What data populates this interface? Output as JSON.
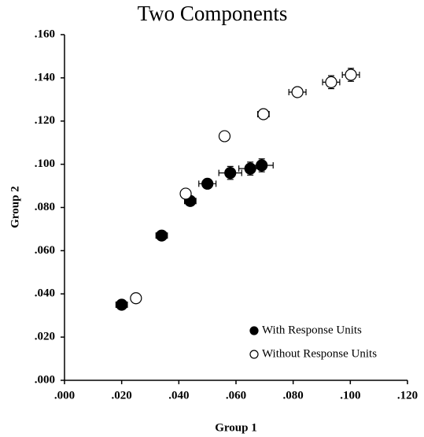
{
  "chart_data": {
    "type": "scatter",
    "title": "Two Components",
    "x_label": "Group 1",
    "y_label": "Group 2",
    "xlim": [
      0,
      0.12
    ],
    "ylim": [
      0,
      0.16
    ],
    "xticks": [
      {
        "value": 0,
        "label": ".000"
      },
      {
        "value": 0.02,
        "label": ".020"
      },
      {
        "value": 0.04,
        "label": ".040"
      },
      {
        "value": 0.06,
        "label": ".060"
      },
      {
        "value": 0.08,
        "label": ".080"
      },
      {
        "value": 0.1,
        "label": ".100"
      },
      {
        "value": 0.12,
        "label": ".120"
      }
    ],
    "yticks": [
      {
        "value": 0,
        "label": ".000"
      },
      {
        "value": 0.02,
        "label": ".020"
      },
      {
        "value": 0.04,
        "label": ".040"
      },
      {
        "value": 0.06,
        "label": ".060"
      },
      {
        "value": 0.08,
        "label": ".080"
      },
      {
        "value": 0.1,
        "label": ".100"
      },
      {
        "value": 0.12,
        "label": ".120"
      },
      {
        "value": 0.14,
        "label": ".140"
      },
      {
        "value": 0.16,
        "label": ".160"
      }
    ],
    "legend": "lower right",
    "series": [
      {
        "name": "With Response Units",
        "color": "#000000",
        "filled": true,
        "x": [
          0.02,
          0.034,
          0.044,
          0.05,
          0.058,
          0.065,
          0.069
        ],
        "values": [
          0.035,
          0.067,
          0.083,
          0.091,
          0.096,
          0.098,
          0.0995
        ],
        "xerr": [
          0.002,
          0.002,
          0.002,
          0.003,
          0.004,
          0.004,
          0.004
        ],
        "yerr": [
          0.001,
          0.001,
          0.002,
          0.002,
          0.003,
          0.003,
          0.003
        ]
      },
      {
        "name": "Without Response Units",
        "color": "#000000",
        "filled": false,
        "x": [
          0.025,
          0.0424,
          0.056,
          0.0696,
          0.0815,
          0.0933,
          0.1002
        ],
        "values": [
          0.038,
          0.0864,
          0.113,
          0.1232,
          0.1334,
          0.138,
          0.1414
        ],
        "xerr": [
          0.001,
          0.001,
          0.001,
          0.002,
          0.003,
          0.003,
          0.003
        ],
        "yerr": [
          0.001,
          0.001,
          0.001,
          0.002,
          0.002,
          0.003,
          0.003
        ]
      }
    ]
  }
}
